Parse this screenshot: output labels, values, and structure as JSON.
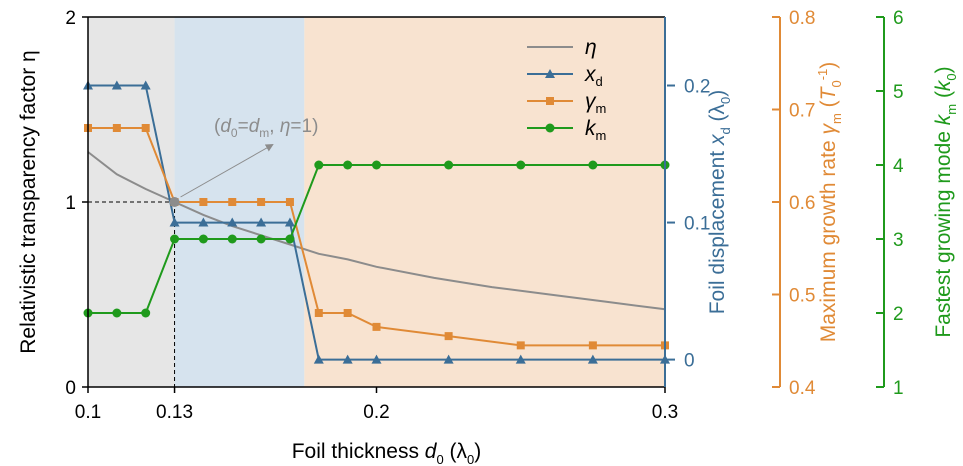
{
  "chart_data": {
    "type": "line",
    "title": "",
    "x": {
      "label_main": "Foil thickness ",
      "label_var": "d",
      "label_sub": "0",
      "label_unit": " (λ",
      "label_unit_sub": "0",
      "label_close": ")",
      "range": [
        0.1,
        0.3
      ],
      "ticks": [
        0.1,
        0.13,
        0.2,
        0.3
      ],
      "tick_labels": [
        "0.1",
        "0.13",
        "0.2",
        "0.3"
      ]
    },
    "axes": {
      "eta": {
        "label": "Relativistic transparency factor η",
        "range": [
          0,
          2
        ],
        "ticks": [
          0,
          1,
          2
        ],
        "tick_labels": [
          "0",
          "1",
          "2"
        ],
        "color": "#000000"
      },
      "xd": {
        "label": "Foil displacement xd (λ0)",
        "label_parts": [
          "Foil displacement ",
          "x",
          "d",
          " (λ",
          "0",
          ")"
        ],
        "range": [
          -0.02,
          0.25
        ],
        "ticks": [
          0,
          0.1,
          0.2
        ],
        "tick_labels": [
          "0",
          "0.1",
          "0.2"
        ],
        "color": "#3b6e97"
      },
      "gamma": {
        "label": "Maximum growth rate γm (T0^-1)",
        "label_parts": [
          "Maximum growth rate ",
          "γ",
          "m",
          " (",
          "T",
          "0",
          "-1",
          ")"
        ],
        "range": [
          0.4,
          0.8
        ],
        "ticks": [
          0.4,
          0.5,
          0.6,
          0.7,
          0.8
        ],
        "tick_labels": [
          "0.4",
          "0.5",
          "0.6",
          "0.7",
          "0.8"
        ],
        "color": "#e08a36"
      },
      "km": {
        "label": "Fastest growing mode km (k0)",
        "label_parts": [
          "Fastest growing mode ",
          "k",
          "m",
          " (",
          "k",
          "0",
          ")"
        ],
        "range": [
          1,
          6
        ],
        "ticks": [
          1,
          2,
          3,
          4,
          5,
          6
        ],
        "tick_labels": [
          "1",
          "2",
          "3",
          "4",
          "5",
          "6"
        ],
        "color": "#1f9a1c"
      }
    },
    "regions": [
      {
        "from": 0.1,
        "to": 0.13,
        "color": "#e6e6e6"
      },
      {
        "from": 0.13,
        "to": 0.175,
        "color": "#d6e3ee"
      },
      {
        "from": 0.175,
        "to": 0.3,
        "color": "#f8e3d0"
      }
    ],
    "series": [
      {
        "key": "eta",
        "legend_var": "η",
        "legend_sub": "",
        "color": "#8c8c8c",
        "marker": "none",
        "x": [
          0.1,
          0.11,
          0.12,
          0.13,
          0.14,
          0.15,
          0.16,
          0.17,
          0.18,
          0.19,
          0.2,
          0.22,
          0.24,
          0.26,
          0.28,
          0.3
        ],
        "y": [
          1.27,
          1.15,
          1.07,
          1.0,
          0.93,
          0.87,
          0.82,
          0.77,
          0.72,
          0.69,
          0.65,
          0.59,
          0.54,
          0.5,
          0.46,
          0.42
        ]
      },
      {
        "key": "xd",
        "legend_var": "x",
        "legend_sub": "d",
        "color": "#3b6e97",
        "marker": "triangle",
        "x": [
          0.1,
          0.11,
          0.12,
          0.13,
          0.14,
          0.15,
          0.16,
          0.17,
          0.18,
          0.19,
          0.2,
          0.225,
          0.25,
          0.275,
          0.3
        ],
        "y": [
          0.2,
          0.2,
          0.2,
          0.1,
          0.1,
          0.1,
          0.1,
          0.1,
          0.0,
          0.0,
          0.0,
          0.0,
          0.0,
          0.0,
          0.0
        ]
      },
      {
        "key": "gamma",
        "legend_var": "γ",
        "legend_sub": "m",
        "color": "#e08a36",
        "marker": "square",
        "x": [
          0.1,
          0.11,
          0.12,
          0.13,
          0.14,
          0.15,
          0.16,
          0.17,
          0.18,
          0.19,
          0.2,
          0.225,
          0.25,
          0.275,
          0.3
        ],
        "y": [
          0.68,
          0.68,
          0.68,
          0.6,
          0.6,
          0.6,
          0.6,
          0.6,
          0.48,
          0.48,
          0.465,
          0.455,
          0.445,
          0.445,
          0.445
        ]
      },
      {
        "key": "km",
        "legend_var": "k",
        "legend_sub": "m",
        "color": "#1f9a1c",
        "marker": "circle",
        "x": [
          0.1,
          0.11,
          0.12,
          0.13,
          0.14,
          0.15,
          0.16,
          0.17,
          0.18,
          0.19,
          0.2,
          0.225,
          0.25,
          0.275,
          0.3
        ],
        "y": [
          2.0,
          2.0,
          2.0,
          3.0,
          3.0,
          3.0,
          3.0,
          3.0,
          4.0,
          4.0,
          4.0,
          4.0,
          4.0,
          4.0,
          4.0
        ]
      }
    ],
    "annotation": {
      "open": "(",
      "d": "d",
      "d_sub": "0",
      "eq": "=",
      "dm": "d",
      "dm_sub": "m",
      "sep": ", ",
      "eta": "η",
      "rest": "=1)",
      "point": {
        "x": 0.13,
        "y": 1
      }
    },
    "legend": {
      "position": "top-right"
    }
  }
}
